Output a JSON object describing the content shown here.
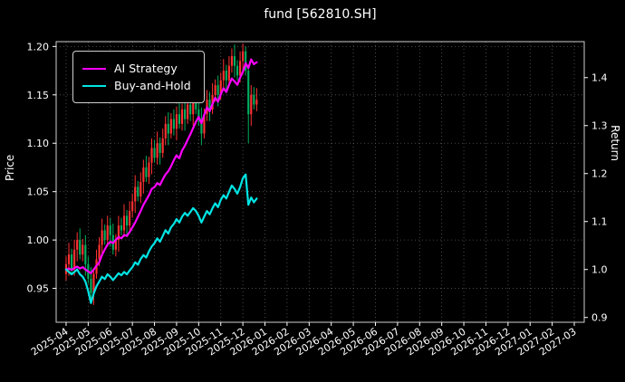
{
  "title": "fund [562810.SH]",
  "axes": {
    "left_label": "Price",
    "right_label": "Return"
  },
  "legend": {
    "items": [
      "AI Strategy",
      "Buy-and-Hold"
    ]
  },
  "chart_data": {
    "type": "candlestick+line",
    "title": "fund [562810.SH]",
    "ylabel_left": "Price",
    "ylabel_right": "Return",
    "grid": {
      "color": "#5a5a5a",
      "dash": "1 3"
    },
    "spine_color": "#cfcfcf",
    "tick_color": "#ffffff",
    "x_lim_months": [
      -0.45,
      23.45
    ],
    "price_ylim": [
      0.915,
      1.205
    ],
    "return_ylim": [
      0.89,
      1.475
    ],
    "price_ticks": {
      "values": [
        0.95,
        1.0,
        1.05,
        1.1,
        1.15,
        1.2
      ],
      "labels": [
        "0.95",
        "1.00",
        "1.05",
        "1.10",
        "1.15",
        "1.20"
      ]
    },
    "return_ticks": {
      "values": [
        0.9,
        1.0,
        1.1,
        1.2,
        1.3,
        1.4
      ],
      "labels": [
        "0.9",
        "1.0",
        "1.1",
        "1.2",
        "1.3",
        "1.4"
      ]
    },
    "x_tick_labels": [
      "2025-04",
      "2025-05",
      "2025-06",
      "2025-07",
      "2025-08",
      "2025-09",
      "2025-10",
      "2025-11",
      "2025-12",
      "2026-01",
      "2026-02",
      "2026-03",
      "2026-04",
      "2026-05",
      "2026-06",
      "2026-07",
      "2026-08",
      "2026-09",
      "2026-10",
      "2026-11",
      "2026-12",
      "2027-01",
      "2027-02",
      "2027-03"
    ],
    "candles": {
      "axis": "price",
      "up_color": "#ff3232",
      "down_color": "#00b060",
      "x_start_month": 0,
      "x_step_month": 0.125,
      "opens": [
        0.965,
        0.975,
        0.985,
        0.97,
        0.99,
        1.0,
        0.985,
        0.995,
        0.975,
        0.96,
        0.945,
        0.965,
        0.98,
        0.995,
        1.01,
        1.0,
        1.015,
        1.005,
        0.99,
        1.0,
        1.015,
        1.01,
        1.025,
        1.015,
        1.03,
        1.04,
        1.055,
        1.045,
        1.06,
        1.075,
        1.065,
        1.08,
        1.095,
        1.085,
        1.1,
        1.09,
        1.105,
        1.12,
        1.11,
        1.125,
        1.115,
        1.13,
        1.12,
        1.135,
        1.125,
        1.14,
        1.13,
        1.145,
        1.135,
        1.125,
        1.11,
        1.13,
        1.145,
        1.135,
        1.15,
        1.16,
        1.15,
        1.165,
        1.175,
        1.165,
        1.18,
        1.19,
        1.18,
        1.17,
        1.185,
        1.195,
        1.175,
        1.13,
        1.15,
        1.14
      ],
      "closes": [
        0.975,
        0.985,
        0.97,
        0.99,
        1.0,
        0.985,
        0.995,
        0.975,
        0.96,
        0.945,
        0.965,
        0.98,
        0.995,
        1.01,
        1.0,
        1.015,
        1.005,
        0.99,
        1.0,
        1.015,
        1.01,
        1.025,
        1.015,
        1.03,
        1.04,
        1.055,
        1.045,
        1.06,
        1.075,
        1.065,
        1.08,
        1.095,
        1.085,
        1.1,
        1.09,
        1.105,
        1.12,
        1.11,
        1.125,
        1.115,
        1.13,
        1.12,
        1.135,
        1.125,
        1.14,
        1.13,
        1.145,
        1.135,
        1.125,
        1.11,
        1.13,
        1.145,
        1.135,
        1.15,
        1.16,
        1.15,
        1.165,
        1.175,
        1.165,
        1.18,
        1.19,
        1.18,
        1.17,
        1.185,
        1.195,
        1.175,
        1.13,
        1.15,
        1.14,
        1.145
      ],
      "highs": [
        0.983,
        0.997,
        0.991,
        1.0,
        1.008,
        1.012,
        1.001,
        1.005,
        0.983,
        0.972,
        0.971,
        0.99,
        1.003,
        1.022,
        1.016,
        1.025,
        1.023,
        1.017,
        1.006,
        1.025,
        1.023,
        1.037,
        1.031,
        1.04,
        1.048,
        1.067,
        1.061,
        1.07,
        1.083,
        1.087,
        1.086,
        1.105,
        1.103,
        1.112,
        1.106,
        1.115,
        1.128,
        1.132,
        1.131,
        1.135,
        1.138,
        1.142,
        1.141,
        1.145,
        1.148,
        1.152,
        1.151,
        1.155,
        1.143,
        1.137,
        1.136,
        1.155,
        1.153,
        1.162,
        1.166,
        1.17,
        1.173,
        1.187,
        1.181,
        1.19,
        1.198,
        1.202,
        1.186,
        1.195,
        1.203,
        1.2,
        1.181,
        1.16,
        1.158,
        1.157
      ],
      "lows": [
        0.958,
        0.963,
        0.965,
        0.963,
        0.978,
        0.98,
        0.978,
        0.963,
        0.955,
        0.938,
        0.933,
        0.96,
        0.973,
        0.983,
        0.995,
        0.993,
        0.993,
        0.985,
        0.983,
        0.988,
        1.005,
        1.003,
        1.003,
        1.01,
        1.023,
        1.028,
        1.04,
        1.038,
        1.048,
        1.06,
        1.058,
        1.068,
        1.08,
        1.078,
        1.078,
        1.085,
        1.098,
        1.098,
        1.105,
        1.108,
        1.103,
        1.115,
        1.113,
        1.113,
        1.12,
        1.123,
        1.118,
        1.13,
        1.118,
        1.098,
        1.105,
        1.123,
        1.123,
        1.13,
        1.143,
        1.138,
        1.145,
        1.158,
        1.153,
        1.16,
        1.173,
        1.168,
        1.165,
        1.163,
        1.173,
        1.17,
        1.1,
        1.118,
        1.135,
        1.133
      ]
    },
    "series": [
      {
        "name": "AI Strategy",
        "color": "#ff00ff",
        "axis": "return",
        "line_width": 2.2,
        "values": [
          1.0,
          1.002,
          0.999,
          1.003,
          1.006,
          1.002,
          1.005,
          1.0,
          0.996,
          0.992,
          1.0,
          1.008,
          1.015,
          1.03,
          1.042,
          1.052,
          1.058,
          1.055,
          1.062,
          1.068,
          1.065,
          1.072,
          1.07,
          1.078,
          1.088,
          1.098,
          1.11,
          1.122,
          1.135,
          1.145,
          1.155,
          1.168,
          1.172,
          1.18,
          1.176,
          1.188,
          1.198,
          1.205,
          1.215,
          1.228,
          1.238,
          1.232,
          1.248,
          1.258,
          1.27,
          1.282,
          1.295,
          1.308,
          1.318,
          1.305,
          1.322,
          1.338,
          1.33,
          1.345,
          1.358,
          1.35,
          1.365,
          1.378,
          1.37,
          1.385,
          1.398,
          1.392,
          1.385,
          1.4,
          1.412,
          1.43,
          1.42,
          1.438,
          1.428,
          1.432
        ]
      },
      {
        "name": "Buy-and-Hold",
        "color": "#00e5e5",
        "axis": "return",
        "line_width": 2.2,
        "values": [
          1.0,
          0.995,
          0.99,
          0.995,
          1.0,
          0.99,
          0.985,
          0.975,
          0.955,
          0.93,
          0.95,
          0.965,
          0.975,
          0.985,
          0.98,
          0.99,
          0.985,
          0.978,
          0.985,
          0.992,
          0.988,
          0.995,
          0.99,
          0.998,
          1.005,
          1.015,
          1.01,
          1.022,
          1.03,
          1.025,
          1.038,
          1.048,
          1.055,
          1.065,
          1.058,
          1.07,
          1.082,
          1.075,
          1.088,
          1.095,
          1.105,
          1.098,
          1.11,
          1.118,
          1.112,
          1.12,
          1.128,
          1.122,
          1.112,
          1.098,
          1.11,
          1.122,
          1.115,
          1.128,
          1.138,
          1.13,
          1.145,
          1.155,
          1.148,
          1.162,
          1.175,
          1.168,
          1.158,
          1.172,
          1.19,
          1.198,
          1.135,
          1.15,
          1.14,
          1.148
        ]
      }
    ]
  }
}
